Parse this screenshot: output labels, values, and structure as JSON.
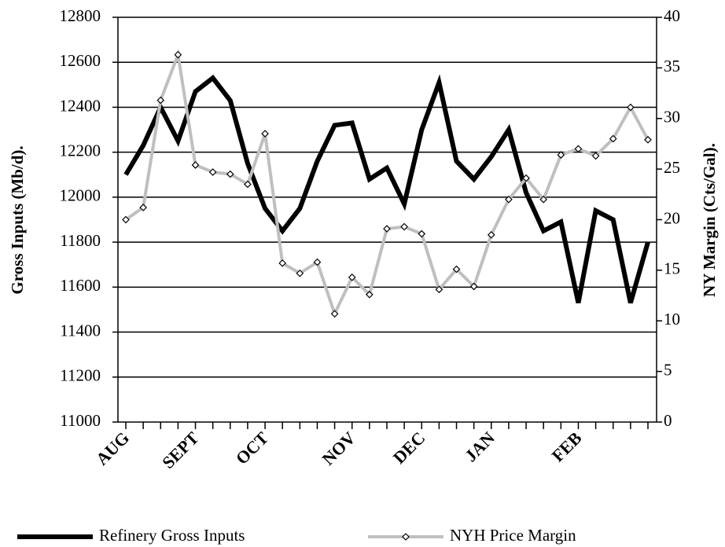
{
  "chart_data": {
    "type": "line",
    "categories": [
      "AUG",
      null,
      null,
      null,
      "SEPT",
      null,
      null,
      null,
      "OCT",
      null,
      null,
      null,
      null,
      "NOV",
      null,
      null,
      null,
      "DEC",
      null,
      null,
      null,
      "JAN",
      null,
      null,
      null,
      null,
      "FEB",
      null,
      null,
      null,
      null
    ],
    "series": [
      {
        "name": "Refinery Gross Inputs",
        "color": "#000000",
        "axis": "y",
        "values": [
          12100,
          12230,
          12400,
          12250,
          12470,
          12530,
          12430,
          12150,
          11950,
          11850,
          11950,
          12160,
          12320,
          12330,
          12080,
          12130,
          11970,
          12300,
          12510,
          12160,
          12080,
          12180,
          12300,
          12020,
          11850,
          11890,
          11530,
          11940,
          11900,
          11530,
          11800
        ]
      },
      {
        "name": "NYH Price Margin",
        "color": "#bfbfbf",
        "axis": "y2",
        "values": [
          20.0,
          21.2,
          31.8,
          36.3,
          25.4,
          24.7,
          24.5,
          23.5,
          28.5,
          15.7,
          14.7,
          15.8,
          10.7,
          14.3,
          12.6,
          19.1,
          19.3,
          18.6,
          13.1,
          15.1,
          13.4,
          18.5,
          22.0,
          24.1,
          22.0,
          26.4,
          27.0,
          26.3,
          28.0,
          31.1,
          27.9
        ]
      }
    ],
    "ylabel": "Gross Inputs (Mb/d).",
    "y2label": "NY Margin (Cts/Gal).",
    "ylim": [
      11000,
      12800
    ],
    "yticks": [
      11000,
      11200,
      11400,
      11600,
      11800,
      12000,
      12200,
      12400,
      12600,
      12800
    ],
    "y2lim": [
      0,
      40
    ],
    "y2ticks": [
      0,
      5,
      10,
      15,
      20,
      25,
      30,
      35,
      40
    ],
    "grid": true
  }
}
